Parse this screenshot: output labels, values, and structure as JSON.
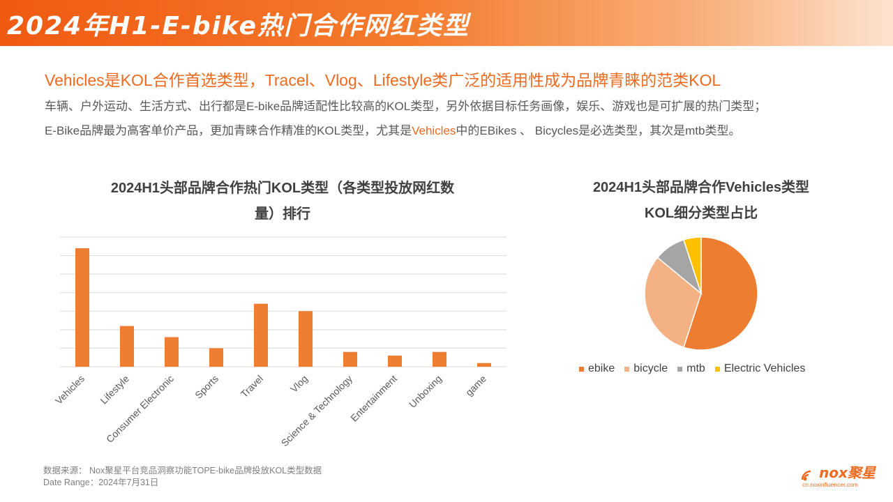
{
  "header": {
    "title": "2024年H1-E-bike热门合作网红类型"
  },
  "headline": "Vehicles是KOL合作首选类型，Tracel、Vlog、Lifestyle类广泛的适用性成为品牌青睐的范类KOL",
  "body": {
    "line1": "车辆、户外运动、生活方式、出行都是E-bike品牌适配性比较高的KOL类型，另外依据目标任务画像，娱乐、游戏也是可扩展的热门类型；",
    "line2_before": "E-Bike品牌最为高客单价产品，更加青睐合作精准的KOL类型，尤其是",
    "line2_highlight": "Vehicles",
    "line2_after": "中的EBikes 、 Bicycles是必选类型，其次是mtb类型。"
  },
  "colors": {
    "accent": "#ee6a1f",
    "bar": "#ed7d31",
    "ebike": "#ed7d31",
    "bicycle": "#f4b183",
    "mtb": "#a5a5a5",
    "electric_vehicles": "#ffc000",
    "grid": "#d9d9d9"
  },
  "chart_data": [
    {
      "type": "bar",
      "title_line1": "2024H1头部品牌合作热门KOL类型（各类型投放网红数",
      "title_line2": "量）排行",
      "categories": [
        "Vehicles",
        "Lifestyle",
        "Consumer Electronic",
        "Sports",
        "Travel",
        "Vlog",
        "Science & Technology",
        "Entertainment",
        "Unboxing",
        "game"
      ],
      "values": [
        32,
        11,
        8,
        5,
        17,
        15,
        4,
        3,
        4,
        1
      ],
      "ylim": [
        0,
        35
      ],
      "grid": true
    },
    {
      "type": "pie",
      "title_line1": "2024H1头部品牌合作Vehicles类型",
      "title_line2": "KOL细分类型占比",
      "labels": [
        "ebike",
        "bicycle",
        "mtb",
        "Electric Vehicles"
      ],
      "values": [
        55,
        31,
        9,
        5
      ],
      "legend": "bottom"
    }
  ],
  "footer": {
    "source": "数据来源：  Nox聚星平台竞品洞察功能TOPE-bike品牌投放KOL类型数据",
    "date_range": "Date Range：2024年7月31日"
  },
  "logo": {
    "text": "nox聚星",
    "url": "cn.noxinfluencer.com"
  }
}
